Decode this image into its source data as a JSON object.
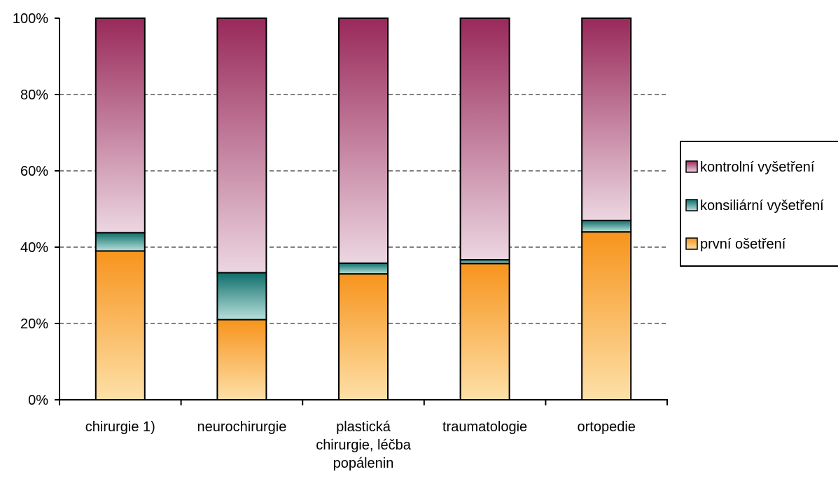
{
  "chart_data": {
    "type": "bar",
    "stacked": true,
    "percent_stacked": true,
    "categories": [
      [
        "chirurgie 1)"
      ],
      [
        "neurochirurgie"
      ],
      [
        "plastická",
        "chirurgie, léčba",
        "popálenin"
      ],
      [
        "traumatologie"
      ],
      [
        "ortopedie"
      ]
    ],
    "series": [
      {
        "name": "první ošetření",
        "values": [
          39,
          21,
          33,
          35.7,
          44
        ],
        "color": "#f7941d",
        "light": "#fde0a8"
      },
      {
        "name": "konsiliární vyšetření",
        "values": [
          4.8,
          12.3,
          2.8,
          1.0,
          3.0
        ],
        "color": "#0e6e6a",
        "light": "#b8e0dc"
      },
      {
        "name": "kontrolní vyšetření",
        "values": [
          56.2,
          66.7,
          64.2,
          63.3,
          53.0
        ],
        "color": "#99295a",
        "light": "#ecd6e1"
      }
    ],
    "y_ticks": [
      "0%",
      "20%",
      "40%",
      "60%",
      "80%",
      "100%"
    ],
    "ylim": [
      0,
      100
    ],
    "grid": "dashed horizontal",
    "legend_placement": "right",
    "legend_order": [
      "kontrolní vyšetření",
      "konsiliární vyšetření",
      "první ošetření"
    ]
  }
}
